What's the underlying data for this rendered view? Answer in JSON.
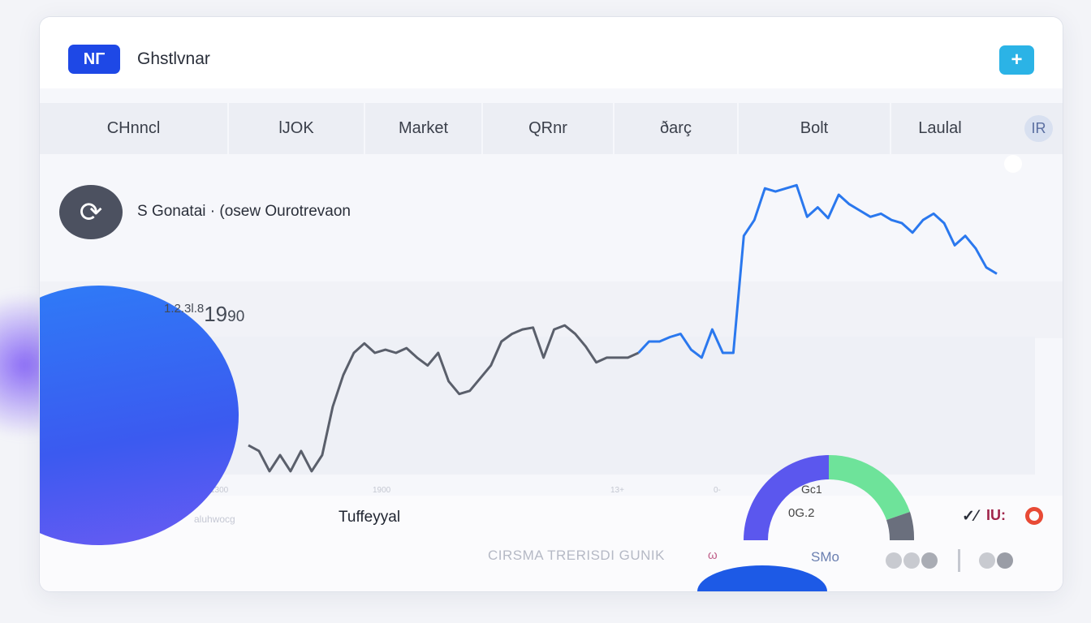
{
  "header": {
    "logo_text": "ΝΓ",
    "app_title": "Ghstlvnar",
    "add_button_label": "+"
  },
  "tabs": [
    {
      "label": "CHnncl"
    },
    {
      "label": "lJOK"
    },
    {
      "label": "Market"
    },
    {
      "label": "QRnr"
    },
    {
      "label": "ðarç"
    },
    {
      "label": "Bolt"
    },
    {
      "label": "Laulal"
    }
  ],
  "tab_avatar": "IR",
  "asset": {
    "icon": "coin-icon",
    "title": "S Gonatai · (osew Ourotrevaon"
  },
  "price": {
    "prefix": "1.2.3l.8",
    "main": "19",
    "suffix": "90"
  },
  "colors": {
    "brand": "#1e48e6",
    "add_button": "#2bb3e6",
    "line_gray": "#5a5f6b",
    "line_blue": "#2a78ee",
    "gauge_purple": "#5b57ee",
    "gauge_green": "#6ee39a",
    "gauge_gray": "#6a6f7d",
    "status_red": "#e84a35"
  },
  "chart_data": {
    "type": "line",
    "ylim": [
      0,
      100
    ],
    "x_ticks": [
      "1300",
      "1900",
      "13+",
      "0-"
    ],
    "grid": false,
    "series": [
      {
        "color": "#5a5f6b",
        "values": [
          10.8,
          9,
          2.6,
          7.7,
          2.6,
          9,
          2.6,
          7.7,
          23,
          33,
          40,
          43,
          40,
          41,
          40,
          41.5,
          38.5,
          36,
          40,
          31,
          27,
          28,
          32,
          36,
          43.6,
          46,
          47.4,
          48,
          38.5,
          47.4,
          48.7,
          46,
          42,
          37,
          38.5,
          38.5,
          38.5,
          40
        ]
      },
      {
        "color": "#2a78ee",
        "values": [
          40,
          43.6,
          43.6,
          45,
          46,
          41,
          38.5,
          47.4,
          40,
          40,
          77,
          82,
          92,
          91,
          92,
          93,
          83,
          86,
          82.6,
          90,
          87,
          85,
          83,
          84,
          82,
          81,
          78,
          82,
          84,
          81,
          74,
          77,
          73,
          67,
          65
        ]
      }
    ]
  },
  "footer": {
    "label": "Tuffeyyal",
    "small_label": "aluhwocg",
    "caption": "CIRSMA TRERISDI GUNIK",
    "caption_icon": "ω"
  },
  "gauge": {
    "label_top": "Gc1",
    "label_bottom": "0G.2",
    "segments": [
      {
        "name": "purple",
        "fraction": 0.5
      },
      {
        "name": "green",
        "fraction": 0.3
      },
      {
        "name": "gray",
        "fraction": 0.2
      }
    ]
  },
  "status": {
    "mark_a": "✓⁄",
    "mark_b": "IU:"
  },
  "legend_glyph": "SMo"
}
